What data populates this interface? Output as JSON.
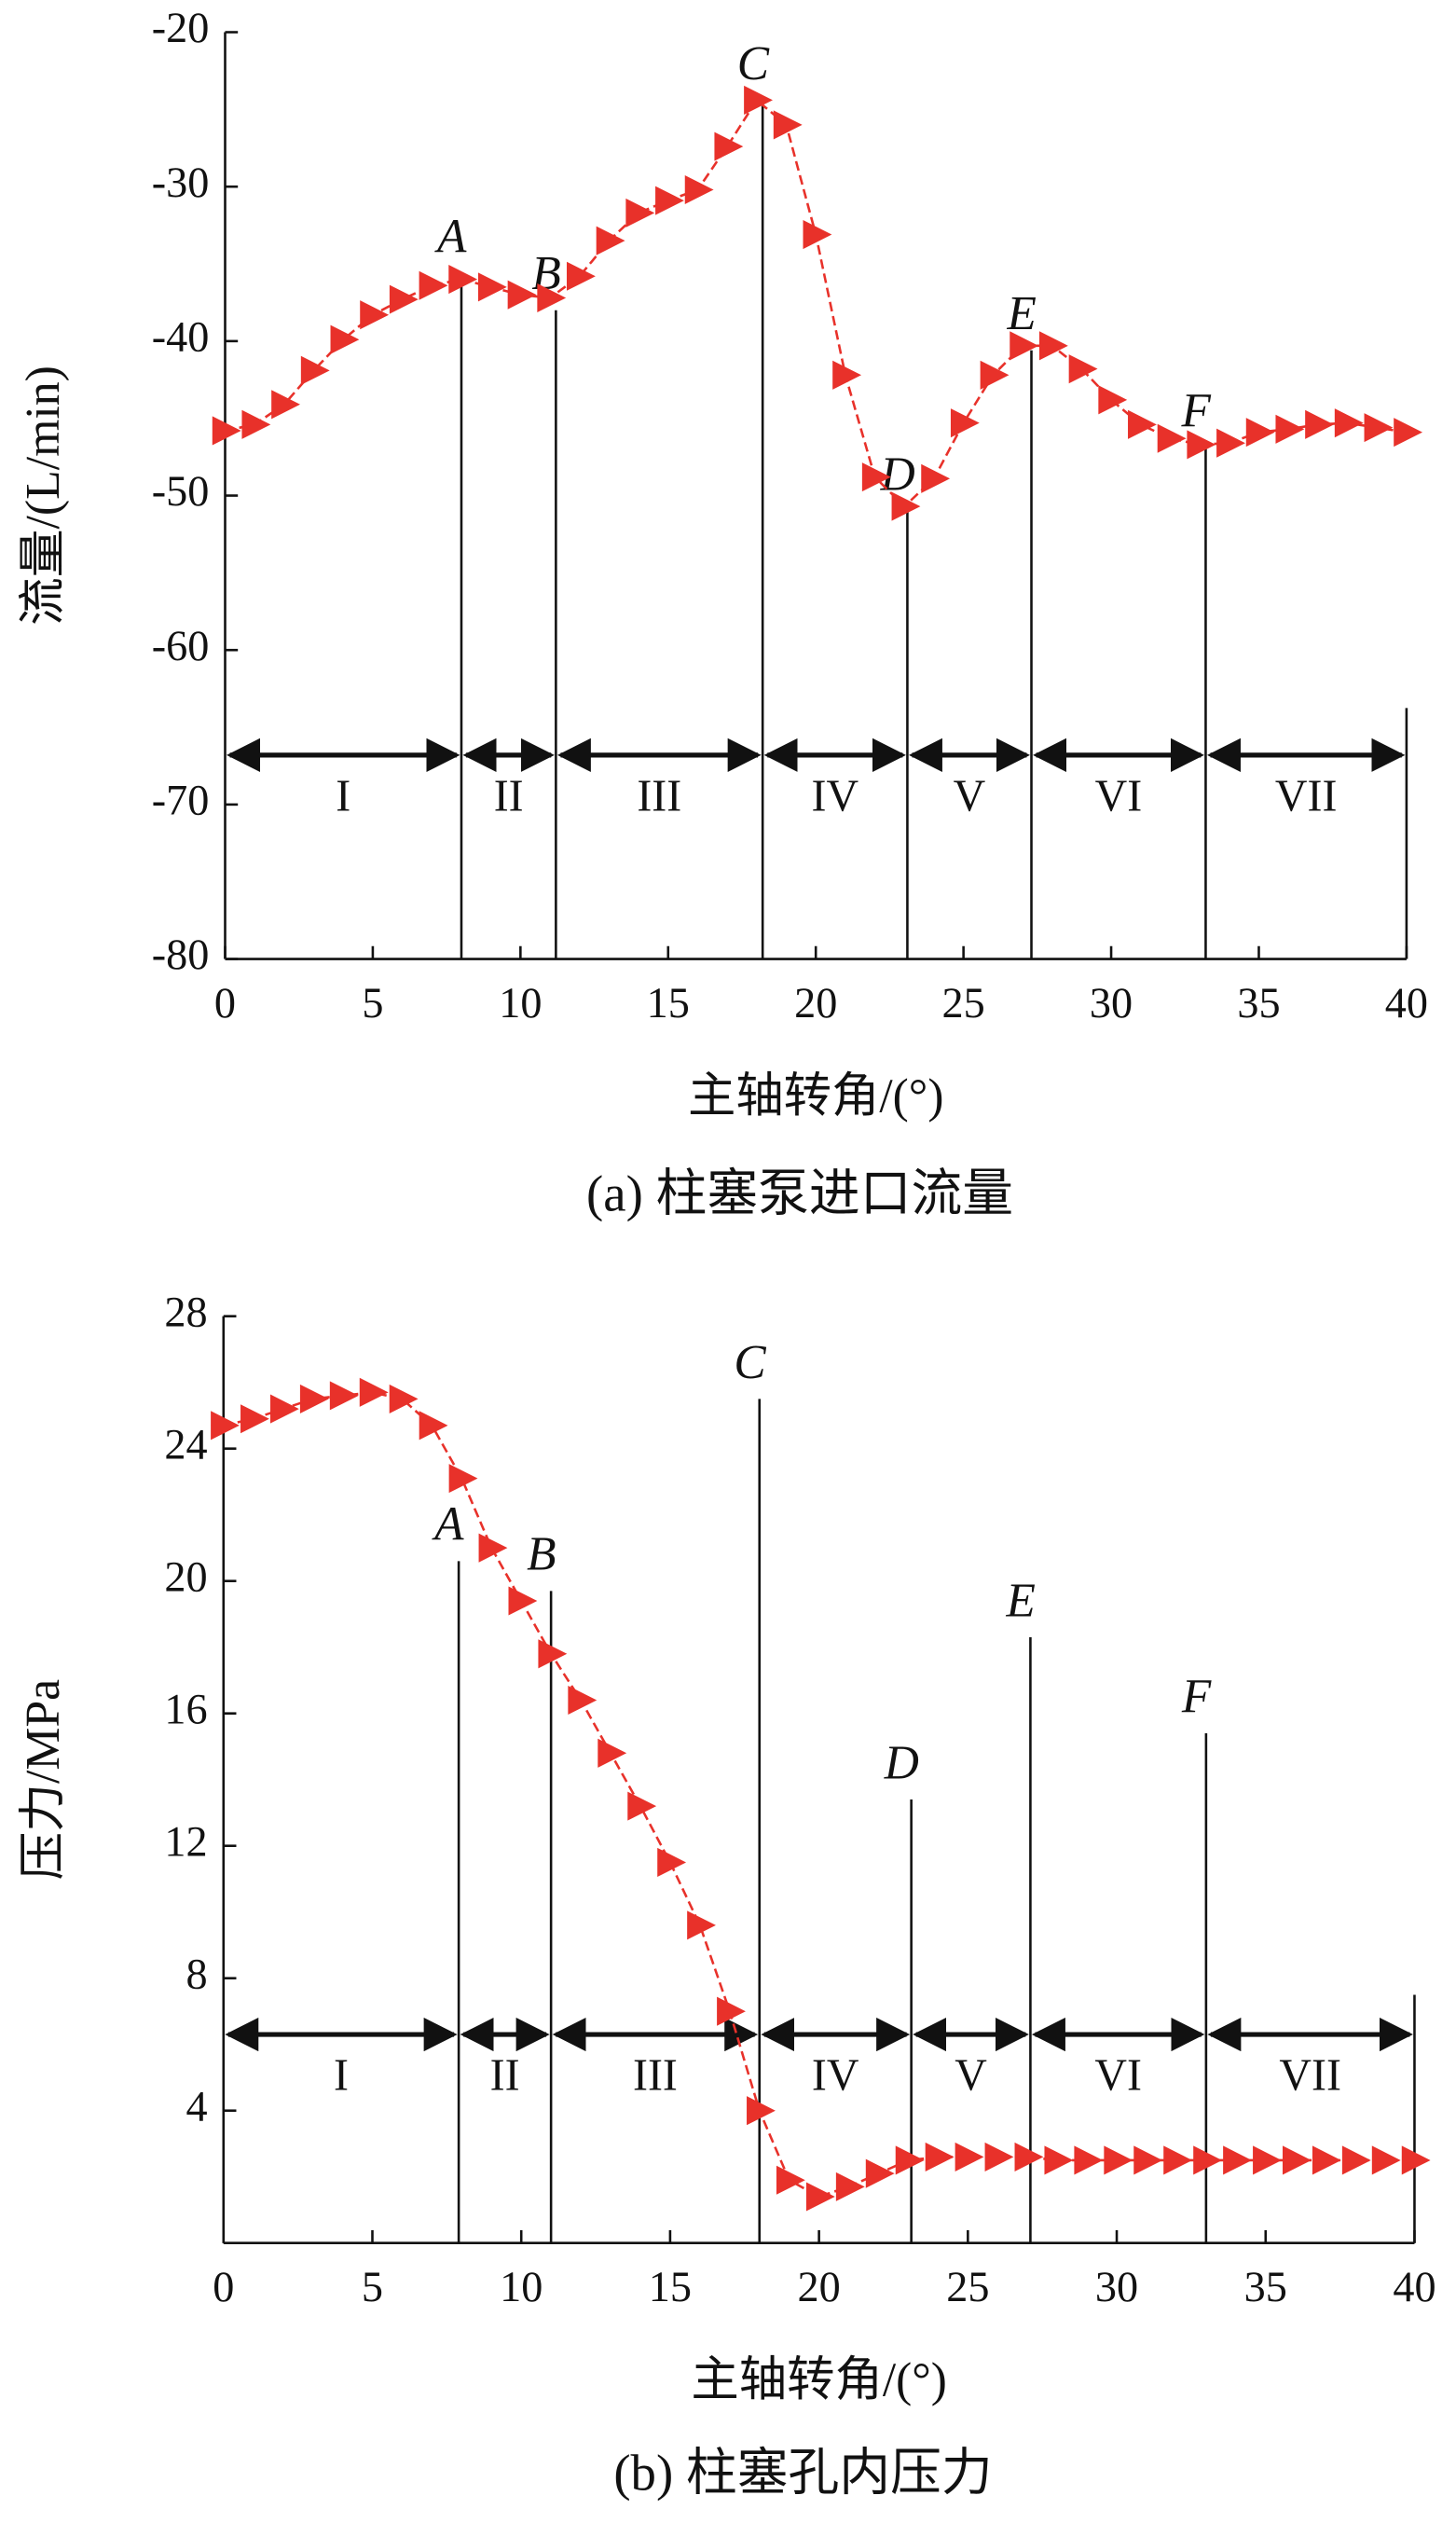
{
  "chart_data": [
    {
      "type": "line",
      "title": "(a) 柱塞泵进口流量",
      "xlabel": "主轴转角/(°)",
      "ylabel": "流量/(L/min)",
      "xlim": [
        0,
        40
      ],
      "ylim": [
        -80,
        -20
      ],
      "xticks": [
        0,
        5,
        10,
        15,
        20,
        25,
        30,
        35,
        40
      ],
      "yticks": [
        -80,
        -70,
        -60,
        -50,
        -40,
        -30,
        -20
      ],
      "x": [
        0,
        1,
        2,
        3,
        4,
        5,
        6,
        7,
        8,
        9,
        10,
        11,
        12,
        13,
        14,
        15,
        16,
        17,
        18,
        19,
        20,
        21,
        22,
        23,
        24,
        25,
        26,
        27,
        28,
        29,
        30,
        31,
        32,
        33,
        34,
        35,
        36,
        37,
        38,
        39,
        40
      ],
      "series": [
        {
          "color": "#e8312a",
          "values": [
            -45.8,
            -45.4,
            -44.1,
            -41.9,
            -39.9,
            -38.3,
            -37.3,
            -36.4,
            -36.0,
            -36.5,
            -37.0,
            -37.2,
            -35.8,
            -33.5,
            -31.7,
            -30.9,
            -30.2,
            -27.4,
            -24.4,
            -26.0,
            -33.1,
            -42.2,
            -48.8,
            -50.7,
            -48.9,
            -45.3,
            -42.2,
            -40.3,
            -40.3,
            -41.8,
            -43.8,
            -45.4,
            -46.3,
            -46.7,
            -46.6,
            -45.9,
            -45.7,
            -45.4,
            -45.3,
            -45.6,
            -45.9
          ]
        }
      ],
      "markers": [
        {
          "label": "A",
          "x": 8,
          "top": -35.6
        },
        {
          "label": "B",
          "x": 11.2,
          "top": -38
        },
        {
          "label": "C",
          "x": 18.2,
          "top": -24.4
        },
        {
          "label": "D",
          "x": 23.1,
          "top": -51
        },
        {
          "label": "E",
          "x": 27.3,
          "top": -40.6
        },
        {
          "label": "F",
          "x": 33.2,
          "top": -46.9
        }
      ],
      "end_line": {
        "x": 40,
        "top": -63.75
      },
      "phase_arrow_y": -66.8,
      "phases": [
        {
          "label": "I",
          "from": 0,
          "to": 8
        },
        {
          "label": "II",
          "from": 8,
          "to": 11.2
        },
        {
          "label": "III",
          "from": 11.2,
          "to": 18.2
        },
        {
          "label": "IV",
          "from": 18.2,
          "to": 23.1
        },
        {
          "label": "V",
          "from": 23.1,
          "to": 27.3
        },
        {
          "label": "VI",
          "from": 27.3,
          "to": 33.2
        },
        {
          "label": "VII",
          "from": 33.2,
          "to": 40
        }
      ]
    },
    {
      "type": "line",
      "title": "(b) 柱塞孔内压力",
      "xlabel": "主轴转角/(°)",
      "ylabel": "压力/MPa",
      "xlim": [
        0,
        40
      ],
      "ylim": [
        0,
        28
      ],
      "xticks": [
        0,
        5,
        10,
        15,
        20,
        25,
        30,
        35,
        40
      ],
      "yticks": [
        4,
        8,
        12,
        16,
        20,
        24,
        28
      ],
      "x": [
        0,
        1,
        2,
        3,
        4,
        5,
        6,
        7,
        8,
        9,
        10,
        11,
        12,
        13,
        14,
        15,
        16,
        17,
        18,
        19,
        20,
        21,
        22,
        23,
        24,
        25,
        26,
        27,
        28,
        29,
        30,
        31,
        32,
        33,
        34,
        35,
        36,
        37,
        38,
        39,
        40
      ],
      "series": [
        {
          "color": "#e8312a",
          "values": [
            24.7,
            24.9,
            25.2,
            25.5,
            25.6,
            25.7,
            25.5,
            24.7,
            23.1,
            21.0,
            19.4,
            17.8,
            16.4,
            14.8,
            13.2,
            11.5,
            9.6,
            7.0,
            4.0,
            1.9,
            1.4,
            1.7,
            2.1,
            2.5,
            2.6,
            2.6,
            2.6,
            2.6,
            2.5,
            2.5,
            2.5,
            2.5,
            2.5,
            2.5,
            2.5,
            2.5,
            2.5,
            2.5,
            2.5,
            2.5,
            2.5
          ]
        }
      ],
      "markers": [
        {
          "label": "A",
          "x": 7.9,
          "top": 20.6
        },
        {
          "label": "B",
          "x": 11,
          "top": 19.7
        },
        {
          "label": "C",
          "x": 18,
          "top": 25.5
        },
        {
          "label": "D",
          "x": 23.1,
          "top": 13.4
        },
        {
          "label": "E",
          "x": 27.1,
          "top": 18.3
        },
        {
          "label": "F",
          "x": 33,
          "top": 15.4
        }
      ],
      "end_line": {
        "x": 40,
        "top": 7.5
      },
      "phase_arrow_y": 6.3,
      "phases": [
        {
          "label": "I",
          "from": 0,
          "to": 7.9
        },
        {
          "label": "II",
          "from": 7.9,
          "to": 11
        },
        {
          "label": "III",
          "from": 11,
          "to": 18
        },
        {
          "label": "IV",
          "from": 18,
          "to": 23.1
        },
        {
          "label": "V",
          "from": 23.1,
          "to": 27.1
        },
        {
          "label": "VI",
          "from": 27.1,
          "to": 33
        },
        {
          "label": "VII",
          "from": 33,
          "to": 40
        }
      ]
    }
  ]
}
